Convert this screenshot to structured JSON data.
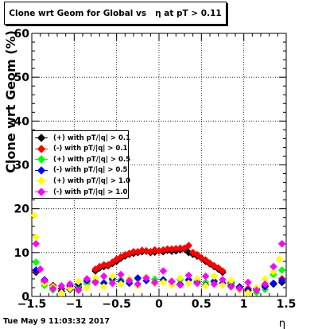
{
  "title": "Clone wrt Geom for Global vs   η at pT > 0.11",
  "timestamp": "Tue May  9 11:03:32 2017",
  "chart_data": {
    "type": "scatter",
    "xlabel": "η",
    "ylabel": "Clone wrt Geom (%)",
    "xlim": [
      -1.5,
      1.5
    ],
    "ylim": [
      0,
      60
    ],
    "xticks": [
      "−1.5",
      "−1",
      "−0.5",
      "0",
      "0.5",
      "1",
      "1.5"
    ],
    "yticks": [
      "0",
      "10",
      "20",
      "30",
      "40",
      "50",
      "60"
    ],
    "grid": true,
    "legend_position": "left-middle",
    "series": [
      {
        "name": "(+) with pT/|q| > 0.1",
        "color": "#000000",
        "points": [
          [
            -1.45,
            5.5
          ],
          [
            -1.35,
            3.5
          ],
          [
            -1.25,
            2.5
          ],
          [
            -1.15,
            1.8
          ],
          [
            -1.05,
            1.6
          ],
          [
            -0.95,
            2.0
          ],
          [
            -0.85,
            3.0
          ],
          [
            -0.75,
            5.8
          ],
          [
            -0.7,
            6.5
          ],
          [
            -0.65,
            6.8
          ],
          [
            -0.6,
            7.0
          ],
          [
            -0.55,
            7.5
          ],
          [
            -0.5,
            8.0
          ],
          [
            -0.45,
            8.7
          ],
          [
            -0.4,
            9.2
          ],
          [
            -0.35,
            9.6
          ],
          [
            -0.3,
            9.8
          ],
          [
            -0.25,
            10.0
          ],
          [
            -0.2,
            10.2
          ],
          [
            -0.15,
            10.3
          ],
          [
            -0.1,
            10.0
          ],
          [
            -0.05,
            10.1
          ],
          [
            0.0,
            10.4
          ],
          [
            0.05,
            10.2
          ],
          [
            0.1,
            10.5
          ],
          [
            0.15,
            10.3
          ],
          [
            0.2,
            10.4
          ],
          [
            0.25,
            10.6
          ],
          [
            0.3,
            10.8
          ],
          [
            0.35,
            10.0
          ],
          [
            0.4,
            9.6
          ],
          [
            0.45,
            9.2
          ],
          [
            0.5,
            8.7
          ],
          [
            0.55,
            8.0
          ],
          [
            0.6,
            7.4
          ],
          [
            0.65,
            6.8
          ],
          [
            0.7,
            6.2
          ],
          [
            0.75,
            5.5
          ],
          [
            0.85,
            3.0
          ],
          [
            0.95,
            2.0
          ],
          [
            1.05,
            1.7
          ],
          [
            1.15,
            1.8
          ],
          [
            1.25,
            2.3
          ],
          [
            1.35,
            2.8
          ],
          [
            1.45,
            3.2
          ]
        ]
      },
      {
        "name": "(-) with pT/|q| > 0.1",
        "color": "#ff0000",
        "points": [
          [
            -1.45,
            5.8
          ],
          [
            -1.35,
            3.2
          ],
          [
            -1.25,
            2.4
          ],
          [
            -1.15,
            1.7
          ],
          [
            -1.05,
            1.8
          ],
          [
            -0.95,
            2.2
          ],
          [
            -0.85,
            3.4
          ],
          [
            -0.75,
            6.2
          ],
          [
            -0.7,
            6.8
          ],
          [
            -0.65,
            7.2
          ],
          [
            -0.6,
            7.2
          ],
          [
            -0.55,
            7.8
          ],
          [
            -0.5,
            8.5
          ],
          [
            -0.45,
            9.0
          ],
          [
            -0.4,
            9.5
          ],
          [
            -0.35,
            9.8
          ],
          [
            -0.3,
            10.2
          ],
          [
            -0.25,
            10.2
          ],
          [
            -0.2,
            10.5
          ],
          [
            -0.15,
            10.4
          ],
          [
            -0.1,
            10.2
          ],
          [
            -0.05,
            10.6
          ],
          [
            0.0,
            10.3
          ],
          [
            0.05,
            10.6
          ],
          [
            0.1,
            10.8
          ],
          [
            0.15,
            10.8
          ],
          [
            0.2,
            10.9
          ],
          [
            0.25,
            11.0
          ],
          [
            0.3,
            11.0
          ],
          [
            0.35,
            11.6
          ],
          [
            0.4,
            10.0
          ],
          [
            0.45,
            9.5
          ],
          [
            0.5,
            8.8
          ],
          [
            0.55,
            8.3
          ],
          [
            0.6,
            7.6
          ],
          [
            0.65,
            7.0
          ],
          [
            0.7,
            6.5
          ],
          [
            0.75,
            5.8
          ],
          [
            0.85,
            3.3
          ],
          [
            0.95,
            2.1
          ],
          [
            1.05,
            1.8
          ],
          [
            1.15,
            1.6
          ],
          [
            1.25,
            2.5
          ],
          [
            1.35,
            3.0
          ],
          [
            1.45,
            4.0
          ]
        ]
      },
      {
        "name": "(+) with pT/|q| > 0.5",
        "color": "#00ff00",
        "points": [
          [
            -1.45,
            7.8
          ],
          [
            -1.35,
            2.5
          ],
          [
            -1.25,
            1.5
          ],
          [
            -1.15,
            1.0
          ],
          [
            -1.05,
            2.0
          ],
          [
            -0.95,
            2.5
          ],
          [
            -0.85,
            3.0
          ],
          [
            -0.75,
            3.5
          ],
          [
            -0.65,
            3.2
          ],
          [
            -0.55,
            3.6
          ],
          [
            -0.45,
            3.8
          ],
          [
            -0.35,
            3.4
          ],
          [
            -0.25,
            4.0
          ],
          [
            -0.15,
            4.2
          ],
          [
            -0.05,
            3.9
          ],
          [
            0.05,
            3.6
          ],
          [
            0.15,
            3.4
          ],
          [
            0.25,
            3.8
          ],
          [
            0.35,
            3.7
          ],
          [
            0.45,
            3.5
          ],
          [
            0.55,
            3.2
          ],
          [
            0.65,
            3.6
          ],
          [
            0.75,
            3.0
          ],
          [
            0.85,
            2.8
          ],
          [
            0.95,
            2.2
          ],
          [
            1.05,
            1.2
          ],
          [
            1.15,
            0.9
          ],
          [
            1.25,
            1.6
          ],
          [
            1.35,
            5.0
          ],
          [
            1.45,
            6.0
          ]
        ]
      },
      {
        "name": "(-) with pT/|q| > 0.5",
        "color": "#0000ff",
        "points": [
          [
            -1.45,
            6.0
          ],
          [
            -1.35,
            3.8
          ],
          [
            -1.25,
            2.0
          ],
          [
            -1.15,
            1.2
          ],
          [
            -1.05,
            2.4
          ],
          [
            -0.95,
            2.8
          ],
          [
            -0.85,
            3.6
          ],
          [
            -0.75,
            3.2
          ],
          [
            -0.65,
            3.0
          ],
          [
            -0.55,
            4.0
          ],
          [
            -0.45,
            3.4
          ],
          [
            -0.35,
            3.0
          ],
          [
            -0.25,
            4.2
          ],
          [
            -0.15,
            3.6
          ],
          [
            -0.05,
            3.0
          ],
          [
            0.05,
            3.8
          ],
          [
            0.15,
            3.4
          ],
          [
            0.25,
            2.8
          ],
          [
            0.35,
            3.8
          ],
          [
            0.45,
            3.2
          ],
          [
            0.55,
            2.6
          ],
          [
            0.65,
            3.4
          ],
          [
            0.75,
            3.0
          ],
          [
            0.85,
            2.4
          ],
          [
            0.95,
            2.2
          ],
          [
            1.05,
            1.4
          ],
          [
            1.15,
            1.8
          ],
          [
            1.25,
            2.2
          ],
          [
            1.35,
            3.0
          ],
          [
            1.45,
            3.6
          ]
        ]
      },
      {
        "name": "(+) with pT/|q| > 1.0",
        "color": "#ffff00",
        "points": [
          [
            -1.47,
            18.5
          ],
          [
            -1.45,
            13.5
          ],
          [
            -1.35,
            3.0
          ],
          [
            -1.25,
            2.2
          ],
          [
            -1.15,
            0.8
          ],
          [
            -1.05,
            1.8
          ],
          [
            -0.95,
            3.4
          ],
          [
            -0.85,
            2.0
          ],
          [
            -0.75,
            4.2
          ],
          [
            -0.65,
            2.2
          ],
          [
            -0.55,
            4.6
          ],
          [
            -0.45,
            2.8
          ],
          [
            -0.35,
            4.0
          ],
          [
            -0.25,
            2.4
          ],
          [
            -0.15,
            4.4
          ],
          [
            -0.05,
            3.0
          ],
          [
            0.05,
            3.2
          ],
          [
            0.15,
            2.6
          ],
          [
            0.25,
            4.2
          ],
          [
            0.35,
            3.0
          ],
          [
            0.45,
            4.0
          ],
          [
            0.55,
            2.4
          ],
          [
            0.65,
            4.6
          ],
          [
            0.75,
            2.6
          ],
          [
            0.85,
            3.6
          ],
          [
            0.95,
            1.4
          ],
          [
            1.05,
            0.8
          ],
          [
            1.15,
            2.0
          ],
          [
            1.25,
            4.0
          ],
          [
            1.35,
            5.6
          ],
          [
            1.45,
            12.0
          ],
          [
            1.42,
            8.5
          ]
        ]
      },
      {
        "name": "(-) with pT/|q| > 1.0",
        "color": "#ff00ff",
        "points": [
          [
            -1.45,
            12.0
          ],
          [
            -1.4,
            6.2
          ],
          [
            -1.35,
            3.6
          ],
          [
            -1.25,
            1.8
          ],
          [
            -1.15,
            2.4
          ],
          [
            -1.05,
            2.8
          ],
          [
            -0.95,
            1.4
          ],
          [
            -0.85,
            4.0
          ],
          [
            -0.75,
            3.2
          ],
          [
            -0.65,
            4.6
          ],
          [
            -0.55,
            3.0
          ],
          [
            -0.45,
            5.0
          ],
          [
            -0.35,
            3.6
          ],
          [
            -0.25,
            2.8
          ],
          [
            -0.15,
            4.2
          ],
          [
            -0.05,
            3.2
          ],
          [
            0.05,
            5.8
          ],
          [
            0.15,
            3.4
          ],
          [
            0.25,
            2.6
          ],
          [
            0.35,
            4.8
          ],
          [
            0.45,
            3.0
          ],
          [
            0.55,
            4.6
          ],
          [
            0.65,
            2.8
          ],
          [
            0.75,
            3.8
          ],
          [
            0.85,
            2.2
          ],
          [
            0.95,
            1.8
          ],
          [
            1.05,
            3.2
          ],
          [
            1.15,
            1.4
          ],
          [
            1.25,
            2.8
          ],
          [
            1.35,
            6.8
          ],
          [
            1.45,
            12.0
          ]
        ]
      }
    ]
  }
}
